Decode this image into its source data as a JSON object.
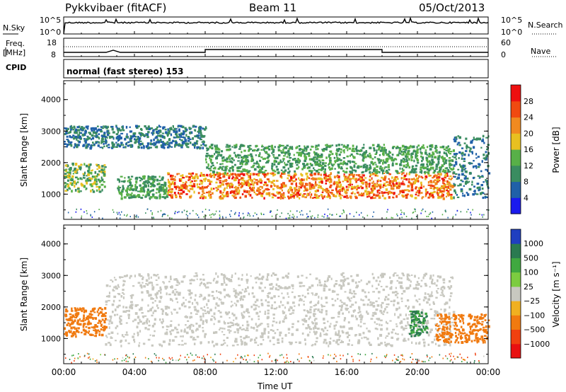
{
  "header": {
    "station": "Pykkvibaer (fitACF)",
    "beam": "Beam 11",
    "date": "05/Oct/2013"
  },
  "noise_panel": {
    "left_label": "N.Sky",
    "left_ticks": [
      "10^5",
      "10^0"
    ],
    "right_label": "N.Search",
    "right_ticks": [
      "10^5",
      "10^0"
    ]
  },
  "freq_panel": {
    "left_label_line1": "Freq.",
    "left_label_line2": "[MHz]",
    "left_ticks": [
      "18",
      "8"
    ],
    "right_label": "Nave",
    "right_ticks": [
      "60",
      "0"
    ]
  },
  "cpid_panel": {
    "label": "CPID",
    "text": "normal (fast stereo) 153"
  },
  "y_axis": {
    "label": "Slant Range [km]",
    "ticks": [
      "1000",
      "2000",
      "3000",
      "4000"
    ]
  },
  "x_axis": {
    "label": "Time UT",
    "ticks": [
      "00:00",
      "04:00",
      "08:00",
      "12:00",
      "16:00",
      "20:00",
      "00:00"
    ]
  },
  "power_scale": {
    "label": "Power [dB]",
    "ticks": [
      "4",
      "8",
      "12",
      "16",
      "20",
      "24",
      "28"
    ],
    "colors": [
      "#1a1aee",
      "#2060a8",
      "#3a8c60",
      "#58b048",
      "#e8c020",
      "#f08a20",
      "#f04a10",
      "#ee1010"
    ]
  },
  "velocity_scale": {
    "label": "Velocity [m s⁻¹]",
    "ticks": [
      "1000",
      "500",
      "100",
      "25",
      "−25",
      "−100",
      "−500",
      "−1000"
    ],
    "colors": [
      "#1f3fc0",
      "#2a7a50",
      "#40a840",
      "#7ccc40",
      "#c8c8c0",
      "#f0b020",
      "#f07a10",
      "#f04010",
      "#e81010"
    ]
  },
  "chart_data": [
    {
      "type": "heatmap",
      "title": "",
      "xlabel": "Time UT",
      "ylabel": "Slant Range [km]",
      "xlim": [
        "00:00",
        "24:00"
      ],
      "ylim": [
        200,
        4600
      ],
      "colorbar": {
        "label": "Power [dB]",
        "range": [
          0,
          32
        ]
      },
      "features": [
        {
          "time": [
            "00:00",
            "02:20"
          ],
          "range_km": [
            1100,
            2000
          ],
          "power_db": [
            8,
            20
          ]
        },
        {
          "time": [
            "00:00",
            "08:00"
          ],
          "range_km": [
            2500,
            3200
          ],
          "power_db": [
            4,
            12
          ]
        },
        {
          "time": [
            "03:00",
            "05:50"
          ],
          "range_km": [
            900,
            1600
          ],
          "power_db": [
            8,
            16
          ]
        },
        {
          "time": [
            "05:50",
            "22:00"
          ],
          "range_km": [
            900,
            1700
          ],
          "power_db": [
            16,
            30
          ]
        },
        {
          "time": [
            "08:00",
            "22:00"
          ],
          "range_km": [
            1700,
            2600
          ],
          "power_db": [
            8,
            16
          ]
        },
        {
          "time": [
            "22:00",
            "24:00"
          ],
          "range_km": [
            900,
            2900
          ],
          "power_db": [
            4,
            12
          ]
        }
      ]
    },
    {
      "type": "heatmap",
      "title": "",
      "xlabel": "Time UT",
      "ylabel": "Slant Range [km]",
      "xlim": [
        "00:00",
        "24:00"
      ],
      "ylim": [
        200,
        4600
      ],
      "colorbar": {
        "label": "Velocity [m s⁻¹]",
        "range": [
          -1000,
          1000
        ]
      },
      "features": [
        {
          "time": [
            "00:00",
            "02:20"
          ],
          "range_km": [
            1100,
            2000
          ],
          "velocity_ms": [
            -500,
            -100
          ]
        },
        {
          "time": [
            "02:20",
            "22:00"
          ],
          "range_km": [
            800,
            3100
          ],
          "velocity_ms": [
            -25,
            25
          ]
        },
        {
          "time": [
            "19:30",
            "20:30"
          ],
          "range_km": [
            1100,
            1900
          ],
          "velocity_ms": [
            100,
            1000
          ]
        },
        {
          "time": [
            "21:00",
            "24:00"
          ],
          "range_km": [
            900,
            1800
          ],
          "velocity_ms": [
            -500,
            -100
          ]
        }
      ]
    }
  ]
}
